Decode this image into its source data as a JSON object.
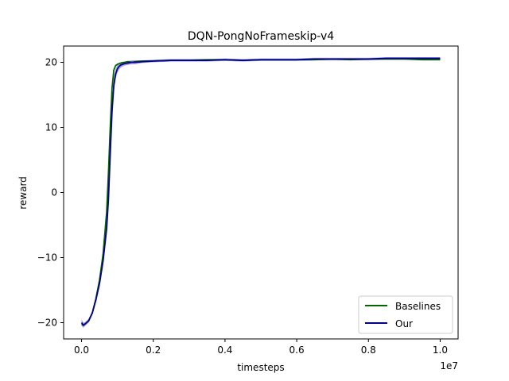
{
  "chart_data": {
    "type": "line",
    "title": "DQN-PongNoFrameskip-v4",
    "xlabel": "timesteps",
    "ylabel": "reward",
    "x_offset_label": "1e7",
    "xlim": [
      -0.05,
      1.05
    ],
    "ylim": [
      -22.5,
      22.5
    ],
    "x_ticks": [
      0.0,
      0.2,
      0.4,
      0.6,
      0.8,
      1.0
    ],
    "x_tick_labels": [
      "0.0",
      "0.2",
      "0.4",
      "0.6",
      "0.8",
      "1.0"
    ],
    "y_ticks": [
      -20,
      -10,
      0,
      10,
      20
    ],
    "y_tick_labels": [
      "−20",
      "−10",
      "0",
      "10",
      "20"
    ],
    "grid": false,
    "legend_position": "bottom-right",
    "series": [
      {
        "name": "Baselines",
        "color": "#006400",
        "x": [
          0.0,
          0.005,
          0.01,
          0.02,
          0.03,
          0.04,
          0.05,
          0.06,
          0.07,
          0.075,
          0.08,
          0.085,
          0.09,
          0.095,
          0.1,
          0.105,
          0.11,
          0.12,
          0.13,
          0.14,
          0.15,
          0.17,
          0.2,
          0.25,
          0.3,
          0.35,
          0.4,
          0.45,
          0.5,
          0.55,
          0.6,
          0.65,
          0.7,
          0.75,
          0.8,
          0.85,
          0.9,
          0.95,
          1.0
        ],
        "y": [
          -20.2,
          -20.4,
          -20.2,
          -19.7,
          -18.5,
          -16.3,
          -13.5,
          -9.5,
          -3.0,
          3.0,
          10.0,
          16.0,
          18.8,
          19.5,
          19.7,
          19.8,
          19.9,
          20.0,
          20.1,
          20.0,
          20.1,
          20.2,
          20.2,
          20.3,
          20.3,
          20.4,
          20.4,
          20.3,
          20.4,
          20.4,
          20.4,
          20.4,
          20.5,
          20.4,
          20.5,
          20.5,
          20.5,
          20.4,
          20.4
        ]
      },
      {
        "name": "Our",
        "color": "#00008b",
        "band_color": "#6a5acd",
        "x": [
          0.0,
          0.005,
          0.01,
          0.02,
          0.03,
          0.04,
          0.05,
          0.06,
          0.07,
          0.075,
          0.08,
          0.085,
          0.09,
          0.095,
          0.1,
          0.105,
          0.11,
          0.12,
          0.13,
          0.14,
          0.15,
          0.17,
          0.2,
          0.25,
          0.3,
          0.35,
          0.4,
          0.45,
          0.5,
          0.55,
          0.6,
          0.65,
          0.7,
          0.75,
          0.8,
          0.85,
          0.9,
          0.95,
          1.0
        ],
        "y": [
          -20.0,
          -20.4,
          -20.2,
          -19.7,
          -18.5,
          -16.5,
          -14.0,
          -10.5,
          -5.5,
          -1.0,
          6.0,
          12.5,
          16.5,
          18.2,
          19.0,
          19.4,
          19.6,
          19.8,
          19.9,
          20.0,
          20.0,
          20.1,
          20.2,
          20.3,
          20.3,
          20.3,
          20.4,
          20.3,
          20.4,
          20.4,
          20.4,
          20.5,
          20.5,
          20.5,
          20.5,
          20.6,
          20.6,
          20.6,
          20.6
        ],
        "spread": [
          0.5,
          0.4,
          0.3,
          0.3,
          0.3,
          0.4,
          0.5,
          0.7,
          1.0,
          1.2,
          1.4,
          1.4,
          1.1,
          0.8,
          0.6,
          0.5,
          0.4,
          0.3,
          0.3,
          0.3,
          0.3,
          0.2,
          0.2,
          0.2,
          0.2,
          0.2,
          0.2,
          0.2,
          0.2,
          0.2,
          0.2,
          0.2,
          0.2,
          0.2,
          0.2,
          0.2,
          0.2,
          0.2,
          0.2
        ]
      }
    ]
  }
}
